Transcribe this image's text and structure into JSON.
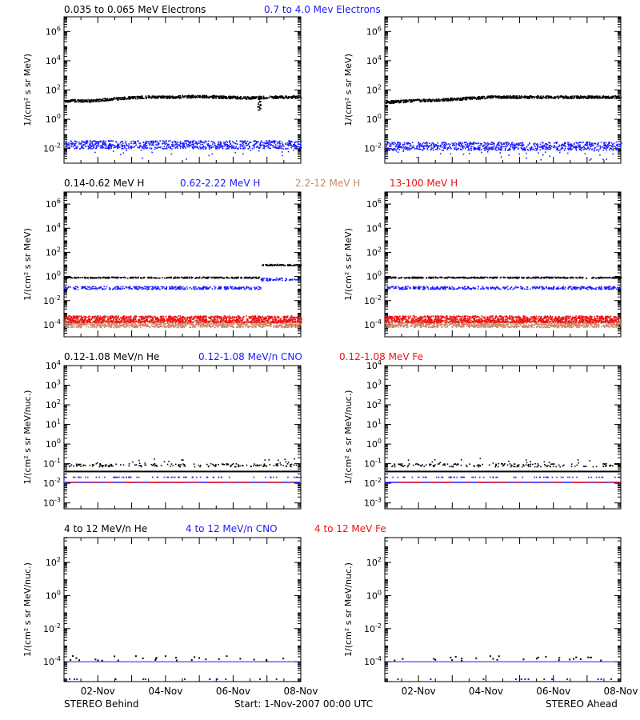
{
  "footer": {
    "left": "STEREO Behind",
    "center": "Start:  1-Nov-2007 00:00 UTC",
    "right": "STEREO Ahead"
  },
  "colors": {
    "black": "#000000",
    "blue": "#1a1aff",
    "salmon": "#cc8866",
    "red": "#ee1111"
  },
  "x_axis": {
    "tick_labels": [
      "02-Nov",
      "04-Nov",
      "06-Nov",
      "08-Nov"
    ],
    "tick_days": [
      1,
      3,
      5,
      7
    ],
    "xlim_days": [
      0,
      7
    ]
  },
  "chart_data": [
    {
      "id": "electrons",
      "type": "scatter",
      "ylabel": "1/(cm² s sr MeV)",
      "yscale": "log",
      "ylim_exp": [
        -3,
        7
      ],
      "yticks_exp": [
        -2,
        0,
        2,
        4,
        6
      ],
      "series": [
        {
          "name": "0.035 to 0.065 MeV Electrons",
          "color": "#000000",
          "behind": {
            "y_log": [
              1.3,
              1.3,
              1.45,
              1.55,
              1.55,
              1.6,
              1.55,
              1.5,
              1.55,
              1.55
            ],
            "dip_day": 5.75
          },
          "ahead": {
            "y_log": [
              1.2,
              1.3,
              1.35,
              1.45,
              1.55,
              1.55,
              1.55,
              1.55,
              1.55,
              1.55
            ]
          }
        },
        {
          "name": "0.7 to 4.0 Mev Electrons",
          "color": "#1a1aff",
          "behind": {
            "y_log": [
              -1.7,
              -1.7,
              -1.7,
              -1.7,
              -1.7,
              -1.7,
              -1.7,
              -1.7,
              -1.7,
              -1.7
            ]
          },
          "ahead": {
            "y_log": [
              -1.8,
              -1.8,
              -1.8,
              -1.8,
              -1.8,
              -1.8,
              -1.8,
              -1.8,
              -1.8,
              -1.8
            ]
          }
        }
      ]
    },
    {
      "id": "protons",
      "type": "scatter",
      "ylabel": "1/(cm² s sr MeV)",
      "yscale": "log",
      "ylim_exp": [
        -5,
        7
      ],
      "yticks_exp": [
        -4,
        -2,
        0,
        2,
        4,
        6
      ],
      "series": [
        {
          "name": "0.14-0.62 MeV H",
          "color": "#000000",
          "behind": {
            "y_log_before": -0.05,
            "y_log_after": 1.0,
            "step_day": 5.8
          },
          "ahead": {
            "y_log": -0.05
          }
        },
        {
          "name": "0.62-2.22 MeV H",
          "color": "#1a1aff",
          "behind": {
            "y_log_before": -0.9,
            "y_log_after": -0.2,
            "step_day": 5.8
          },
          "ahead": {
            "y_log": -0.9
          }
        },
        {
          "name": "2.2-12 MeV H",
          "color": "#cc8866",
          "behind": {
            "y_log": -3.9
          },
          "ahead": {
            "y_log": -3.9
          }
        },
        {
          "name": "13-100 MeV H",
          "color": "#ee1111",
          "behind": {
            "y_log": -3.5
          },
          "ahead": {
            "y_log": -3.5
          }
        }
      ]
    },
    {
      "id": "suprathermal",
      "type": "scatter",
      "ylabel": "1/(cm² s sr MeV/nuc.)",
      "yscale": "log",
      "ylim_exp": [
        -3.3,
        4
      ],
      "yticks_exp": [
        -3,
        -2,
        -1,
        0,
        1,
        2,
        3,
        4
      ],
      "series": [
        {
          "name": "0.12-1.08 MeV/n He",
          "color": "#000000",
          "behind": {
            "y_log": -1.05,
            "line_y_log": -1.4
          },
          "ahead": {
            "y_log": -1.05,
            "line_y_log": -1.4
          }
        },
        {
          "name": "0.12-1.08 MeV/n CNO",
          "color": "#1a1aff",
          "behind": {
            "y_log": -1.95,
            "upper_y_log": -1.7
          },
          "ahead": {
            "y_log": -1.95,
            "upper_y_log": -1.7
          }
        },
        {
          "name": "0.12-1.08 MeV Fe",
          "color": "#ee1111",
          "behind": {
            "y_log": -1.95
          },
          "ahead": {
            "y_log": -1.95
          }
        }
      ]
    },
    {
      "id": "energetic",
      "type": "scatter",
      "ylabel": "1/(cm² s sr MeV/nuc.)",
      "yscale": "log",
      "ylim_exp": [
        -5.2,
        3.5
      ],
      "yticks_exp": [
        -4,
        -2,
        0,
        2
      ],
      "series": [
        {
          "name": "4 to 12 MeV/n He",
          "color": "#000000",
          "behind": {
            "y_log": -3.75
          },
          "ahead": {
            "y_log": -3.75
          }
        },
        {
          "name": "4 to 12 MeV/n CNO",
          "color": "#1a1aff",
          "behind": {
            "y_log": -4.0
          },
          "ahead": {
            "y_log": -4.0
          }
        },
        {
          "name": "4 to 12 MeV Fe",
          "color": "#ee1111",
          "behind": {
            "y_log": -4.0
          },
          "ahead": {
            "y_log": -4.0
          }
        }
      ]
    }
  ]
}
